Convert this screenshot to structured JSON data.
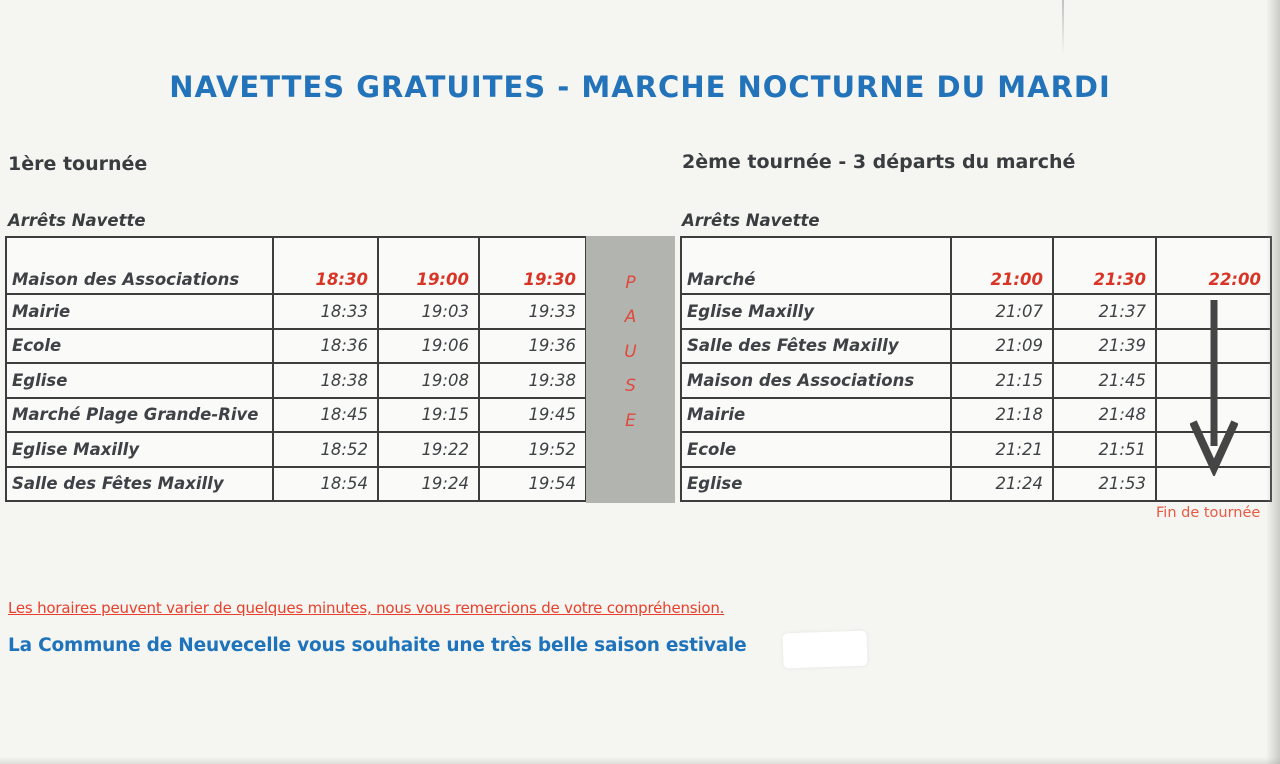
{
  "title": "NAVETTES GRATUITES - MARCHE NOCTURNE DU MARDI",
  "tours": [
    {
      "heading": "1ère tournée",
      "stops_label": "Arrêts Navette",
      "rows": [
        {
          "stop": "Maison des Associations",
          "times": [
            "18:30",
            "19:00",
            "19:30"
          ],
          "departure": true
        },
        {
          "stop": "Mairie",
          "times": [
            "18:33",
            "19:03",
            "19:33"
          ],
          "departure": false
        },
        {
          "stop": "Ecole",
          "times": [
            "18:36",
            "19:06",
            "19:36"
          ],
          "departure": false
        },
        {
          "stop": "Eglise",
          "times": [
            "18:38",
            "19:08",
            "19:38"
          ],
          "departure": false
        },
        {
          "stop": "Marché Plage Grande-Rive",
          "times": [
            "18:45",
            "19:15",
            "19:45"
          ],
          "departure": false
        },
        {
          "stop": "Eglise Maxilly",
          "times": [
            "18:52",
            "19:22",
            "19:52"
          ],
          "departure": false
        },
        {
          "stop": "Salle des Fêtes Maxilly",
          "times": [
            "18:54",
            "19:24",
            "19:54"
          ],
          "departure": false
        }
      ]
    },
    {
      "heading": "2ème tournée - 3 départs du marché",
      "stops_label": "Arrêts Navette",
      "rows": [
        {
          "stop": "Marché",
          "times": [
            "21:00",
            "21:30",
            "22:00"
          ],
          "departure": true
        },
        {
          "stop": "Eglise Maxilly",
          "times": [
            "21:07",
            "21:37",
            ""
          ],
          "departure": false
        },
        {
          "stop": "Salle des Fêtes Maxilly",
          "times": [
            "21:09",
            "21:39",
            ""
          ],
          "departure": false
        },
        {
          "stop": "Maison des Associations",
          "times": [
            "21:15",
            "21:45",
            ""
          ],
          "departure": false
        },
        {
          "stop": "Mairie",
          "times": [
            "21:18",
            "21:48",
            ""
          ],
          "departure": false
        },
        {
          "stop": "Ecole",
          "times": [
            "21:21",
            "21:51",
            ""
          ],
          "departure": false
        },
        {
          "stop": "Eglise",
          "times": [
            "21:24",
            "21:53",
            ""
          ],
          "departure": false
        }
      ]
    }
  ],
  "pause_letters": [
    "P",
    "A",
    "U",
    "S",
    "E"
  ],
  "pause_label": "PAUSE",
  "arrow_caption": "Fin de tournée",
  "footer": {
    "notice": "Les horaires peuvent varier de quelques minutes, nous vous remercions de votre compréhension.",
    "greeting": "La Commune de Neuvecelle vous souhaite une très belle saison estivale"
  },
  "colors": {
    "title_blue": "#2273b9",
    "greeting_blue": "#1e73bb",
    "departure_red": "#d93527",
    "pause_red": "#df4a3d",
    "notice_red": "#e8402c",
    "caption_red": "#e85a44",
    "text_dark": "#3e4145",
    "border_dark": "#3d3d3d",
    "pause_bg": "#b2b4af",
    "paper_bg": "#f5f5f1"
  }
}
